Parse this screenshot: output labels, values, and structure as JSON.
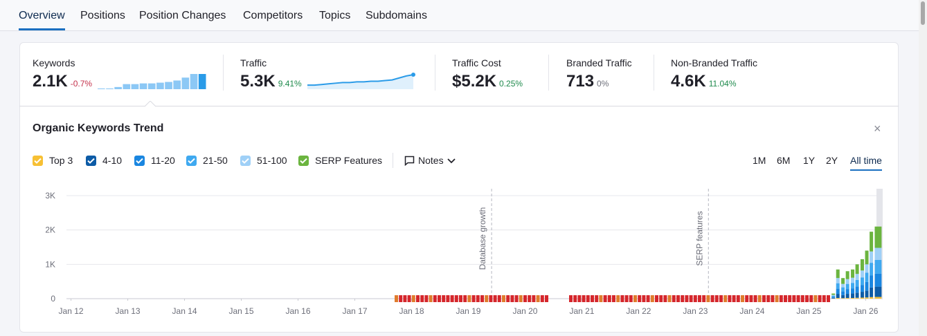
{
  "tabs": [
    {
      "label": "Overview",
      "active": true
    },
    {
      "label": "Positions",
      "active": false
    },
    {
      "label": "Position Changes",
      "active": false
    },
    {
      "label": "Competitors",
      "active": false
    },
    {
      "label": "Topics",
      "active": false
    },
    {
      "label": "Subdomains",
      "active": false
    }
  ],
  "metrics": [
    {
      "label": "Keywords",
      "value": "2.1K",
      "change": "-0.7%",
      "change_color": "#c4314b",
      "sparkline": {
        "type": "bars",
        "color": "#8cc8f5",
        "last_color": "#2a9be8",
        "values": [
          1,
          1,
          3,
          7,
          7,
          8,
          8,
          9,
          10,
          12,
          16,
          21,
          21
        ]
      }
    },
    {
      "label": "Traffic",
      "value": "5.3K",
      "change": "9.41%",
      "change_color": "#1f8a4c",
      "sparkline": {
        "type": "line",
        "color": "#2a9be8",
        "values": [
          3,
          3,
          4,
          5,
          6,
          7,
          7,
          8,
          8,
          9,
          9,
          10,
          11,
          14,
          17,
          19
        ]
      }
    },
    {
      "label": "Traffic Cost",
      "value": "$5.2K",
      "change": "0.25%",
      "change_color": "#1f8a4c"
    },
    {
      "label": "Branded Traffic",
      "value": "713",
      "change": "0%",
      "change_color": "#6c6e79"
    },
    {
      "label": "Non-Branded Traffic",
      "value": "4.6K",
      "change": "11.04%",
      "change_color": "#1f8a4c"
    }
  ],
  "panel": {
    "title": "Organic Keywords Trend",
    "close": "×",
    "notes": "Notes",
    "ranges": [
      {
        "label": "1M",
        "active": false
      },
      {
        "label": "6M",
        "active": false
      },
      {
        "label": "1Y",
        "active": false
      },
      {
        "label": "2Y",
        "active": false
      },
      {
        "label": "All time",
        "active": true
      }
    ]
  },
  "chart_data": {
    "type": "stacked-bar",
    "x": [
      2025.43,
      2025.51,
      2025.6,
      2025.68,
      2025.77,
      2025.85,
      2025.94,
      2026.02,
      2026.1,
      2026.19,
      2026.25
    ],
    "series": [
      {
        "name": "Top 3",
        "color": "#f7c034",
        "values": [
          5,
          20,
          15,
          20,
          20,
          25,
          30,
          35,
          45,
          50,
          50
        ]
      },
      {
        "name": "4-10",
        "color": "#0d5ba6",
        "values": [
          20,
          120,
          90,
          120,
          130,
          150,
          170,
          200,
          280,
          300,
          300
        ]
      },
      {
        "name": "11-20",
        "color": "#1a86e0",
        "values": [
          25,
          150,
          110,
          140,
          150,
          180,
          200,
          250,
          350,
          380,
          380
        ]
      },
      {
        "name": "21-50",
        "color": "#3fa9f0",
        "values": [
          30,
          160,
          115,
          150,
          160,
          190,
          220,
          270,
          370,
          400,
          400
        ]
      },
      {
        "name": "51-100",
        "color": "#9fd0f7",
        "values": [
          30,
          150,
          100,
          140,
          150,
          175,
          200,
          245,
          330,
          350,
          350
        ]
      },
      {
        "name": "SERP Features",
        "color": "#6bb43f",
        "values": [
          40,
          250,
          170,
          230,
          240,
          280,
          330,
          400,
          575,
          620,
          620
        ]
      }
    ],
    "xlim": [
      2011.92,
      2026.3
    ],
    "xticks": [
      {
        "value": 2012,
        "label": "Jan 12"
      },
      {
        "value": 2013,
        "label": "Jan 13"
      },
      {
        "value": 2014,
        "label": "Jan 14"
      },
      {
        "value": 2015,
        "label": "Jan 15"
      },
      {
        "value": 2016,
        "label": "Jan 16"
      },
      {
        "value": 2017,
        "label": "Jan 17"
      },
      {
        "value": 2018,
        "label": "Jan 18"
      },
      {
        "value": 2019,
        "label": "Jan 19"
      },
      {
        "value": 2020,
        "label": "Jan 20"
      },
      {
        "value": 2021,
        "label": "Jan 21"
      },
      {
        "value": 2022,
        "label": "Jan 22"
      },
      {
        "value": 2023,
        "label": "Jan 23"
      },
      {
        "value": 2024,
        "label": "Jan 24"
      },
      {
        "value": 2025,
        "label": "Jan 25"
      },
      {
        "value": 2026,
        "label": "Jan 26"
      }
    ],
    "ylim": [
      0,
      3000
    ],
    "yticks": [
      0,
      {
        "value": 1000,
        "label": "1K"
      },
      {
        "value": 2000,
        "label": "2K"
      },
      {
        "value": 3000,
        "label": "3K"
      }
    ],
    "grid": true,
    "annotations": [
      {
        "x": 2019.41,
        "text": "Database growth"
      },
      {
        "x": 2023.23,
        "text": "SERP features"
      }
    ]
  }
}
